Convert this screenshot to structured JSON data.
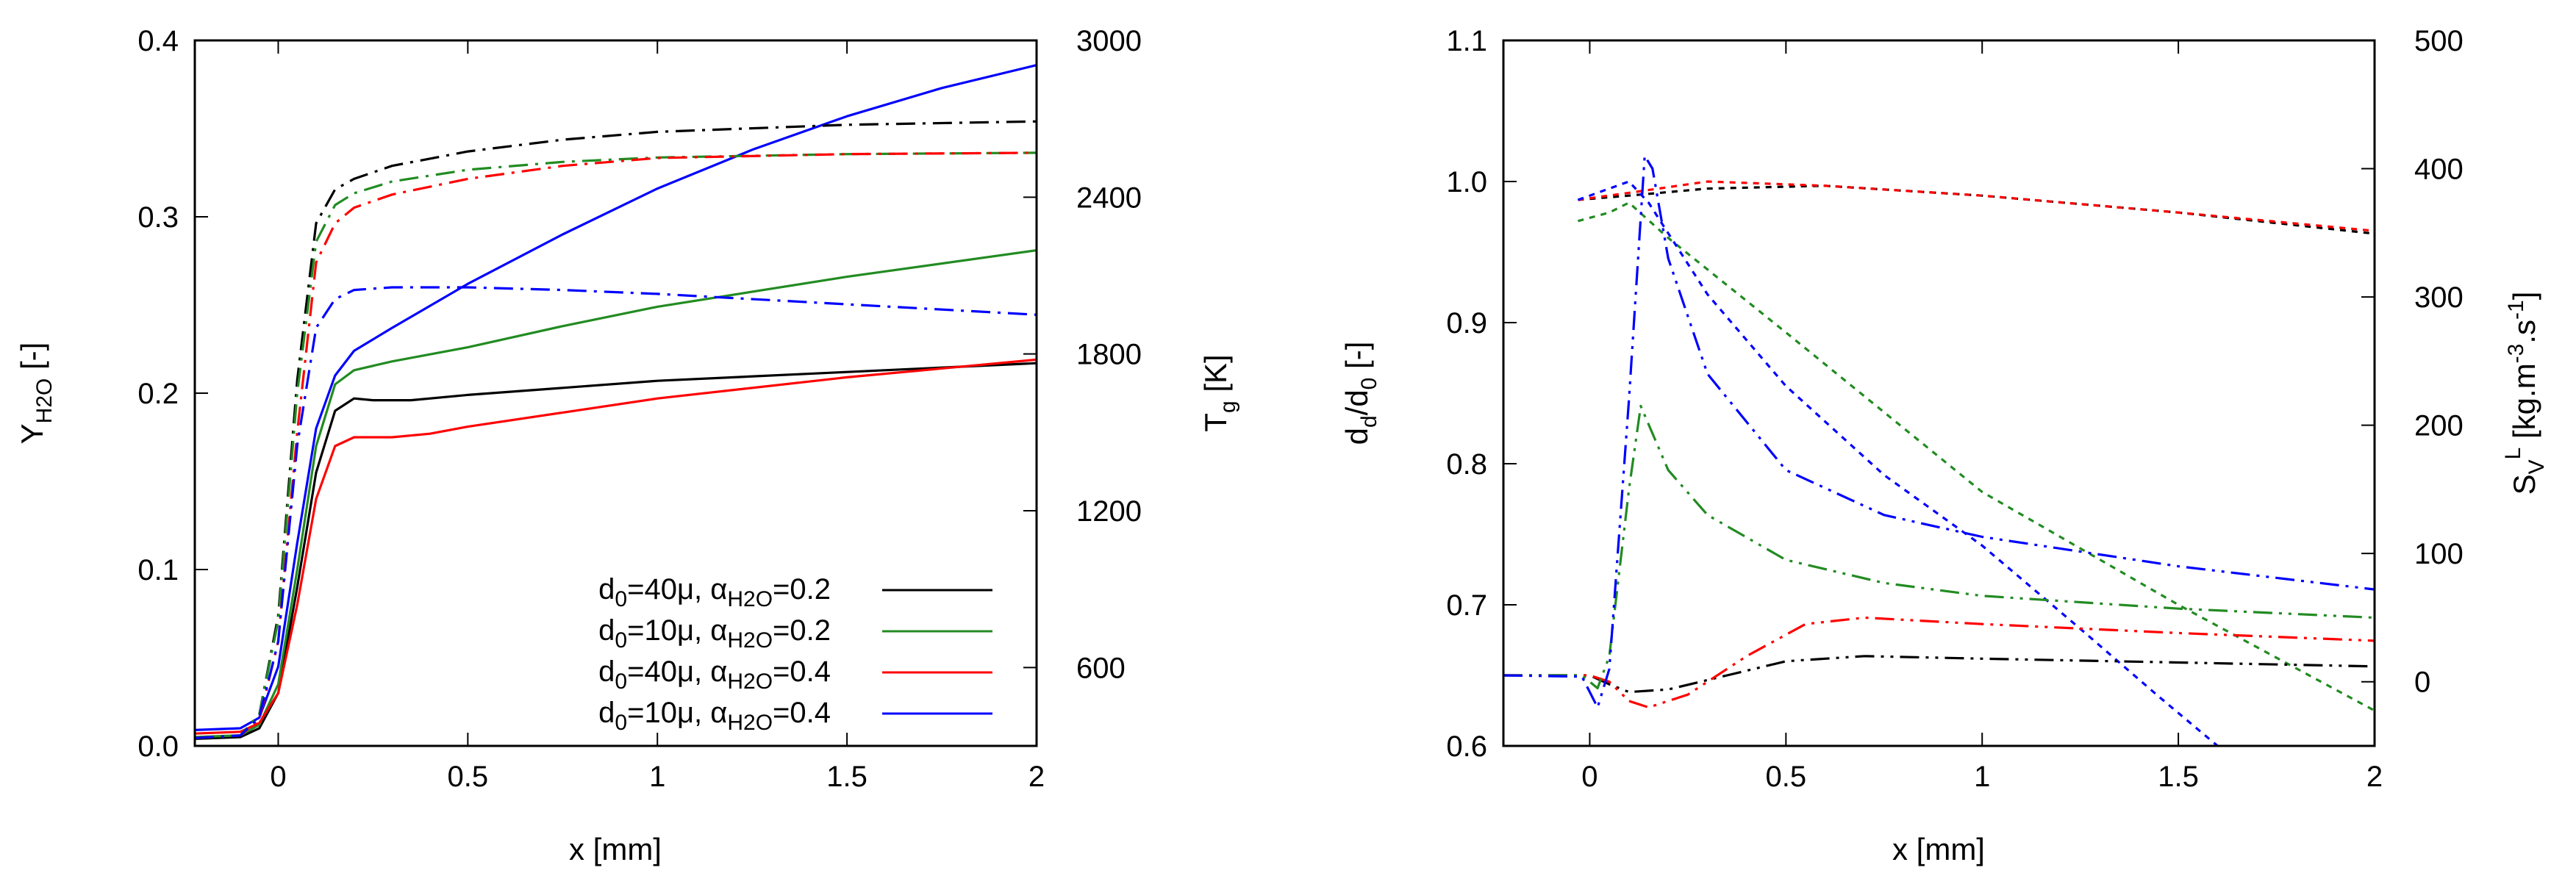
{
  "chart_data": [
    {
      "type": "line",
      "xlabel": "x [mm]",
      "ylabel_left": {
        "main": "Y",
        "sub": "H2O",
        "suffix": " [-]"
      },
      "ylabel_right": {
        "main": "T",
        "sub": "g",
        "suffix": " [K]"
      },
      "xlim": [
        -0.22,
        2.0
      ],
      "ylim_left": [
        0.0,
        0.4
      ],
      "ylim_right": [
        300,
        3000
      ],
      "xticks": [
        {
          "v": 0,
          "label": "0"
        },
        {
          "v": 0.5,
          "label": "0.5"
        },
        {
          "v": 1,
          "label": "1"
        },
        {
          "v": 1.5,
          "label": "1.5"
        },
        {
          "v": 2,
          "label": "2"
        }
      ],
      "yticks_left": [
        {
          "v": 0.0,
          "label": "0.0"
        },
        {
          "v": 0.1,
          "label": "0.1"
        },
        {
          "v": 0.2,
          "label": "0.2"
        },
        {
          "v": 0.3,
          "label": "0.3"
        },
        {
          "v": 0.4,
          "label": "0.4"
        }
      ],
      "yticks_right": [
        {
          "v": 600,
          "label": "600"
        },
        {
          "v": 1200,
          "label": "1200"
        },
        {
          "v": 1800,
          "label": "1800"
        },
        {
          "v": 2400,
          "label": "2400"
        },
        {
          "v": 3000,
          "label": "3000"
        }
      ],
      "legend": [
        {
          "d_label": "d",
          "d_sub": "0",
          "d_val": "=40μ, ",
          "a_label": "α",
          "a_sub": "H2O",
          "a_val": "=0.2",
          "color": "#000000"
        },
        {
          "d_label": "d",
          "d_sub": "0",
          "d_val": "=10μ, ",
          "a_label": "α",
          "a_sub": "H2O",
          "a_val": "=0.2",
          "color": "#228b22"
        },
        {
          "d_label": "d",
          "d_sub": "0",
          "d_val": "=40μ, ",
          "a_label": "α",
          "a_sub": "H2O",
          "a_val": "=0.4",
          "color": "#ff0000"
        },
        {
          "d_label": "d",
          "d_sub": "0",
          "d_val": "=10μ, ",
          "a_label": "α",
          "a_sub": "H2O",
          "a_val": "=0.4",
          "color": "#0000ff"
        }
      ],
      "series": [
        {
          "name": "Y_H2O d0=40μ α=0.2",
          "axis": "left",
          "style": "solid",
          "color": "#000000",
          "x": [
            -0.22,
            -0.1,
            -0.05,
            0.0,
            0.05,
            0.1,
            0.15,
            0.2,
            0.25,
            0.35,
            0.5,
            0.75,
            1.0,
            1.5,
            2.0
          ],
          "y": [
            0.004,
            0.005,
            0.01,
            0.03,
            0.09,
            0.155,
            0.19,
            0.197,
            0.196,
            0.196,
            0.199,
            0.203,
            0.207,
            0.212,
            0.217
          ]
        },
        {
          "name": "Y_H2O d0=10μ α=0.2",
          "axis": "left",
          "style": "solid",
          "color": "#228b22",
          "x": [
            -0.22,
            -0.1,
            -0.05,
            0.0,
            0.05,
            0.1,
            0.15,
            0.2,
            0.3,
            0.5,
            0.75,
            1.0,
            1.5,
            2.0
          ],
          "y": [
            0.005,
            0.006,
            0.012,
            0.035,
            0.1,
            0.17,
            0.205,
            0.213,
            0.218,
            0.226,
            0.238,
            0.249,
            0.266,
            0.281
          ]
        },
        {
          "name": "Y_H2O d0=40μ α=0.4",
          "axis": "left",
          "style": "solid",
          "color": "#ff0000",
          "x": [
            -0.22,
            -0.1,
            -0.05,
            0.0,
            0.05,
            0.1,
            0.15,
            0.2,
            0.3,
            0.4,
            0.5,
            0.75,
            1.0,
            1.5,
            2.0
          ],
          "y": [
            0.007,
            0.008,
            0.013,
            0.03,
            0.08,
            0.14,
            0.17,
            0.175,
            0.175,
            0.177,
            0.181,
            0.189,
            0.197,
            0.209,
            0.219
          ]
        },
        {
          "name": "Y_H2O d0=10μ α=0.4",
          "axis": "left",
          "style": "solid",
          "color": "#0000ff",
          "x": [
            -0.22,
            -0.1,
            -0.05,
            0.0,
            0.05,
            0.1,
            0.15,
            0.2,
            0.3,
            0.5,
            0.75,
            1.0,
            1.25,
            1.5,
            1.75,
            2.0
          ],
          "y": [
            0.009,
            0.01,
            0.016,
            0.045,
            0.115,
            0.18,
            0.21,
            0.224,
            0.237,
            0.262,
            0.29,
            0.316,
            0.338,
            0.357,
            0.373,
            0.386
          ]
        },
        {
          "name": "T_g d0=40μ α=0.2",
          "axis": "right",
          "style": "dashdot",
          "color": "#000000",
          "x": [
            -0.22,
            -0.1,
            -0.05,
            0.0,
            0.05,
            0.1,
            0.15,
            0.2,
            0.3,
            0.5,
            0.75,
            1.0,
            1.5,
            2.0
          ],
          "y": [
            330,
            340,
            420,
            800,
            1700,
            2300,
            2430,
            2470,
            2520,
            2575,
            2620,
            2650,
            2677,
            2690
          ]
        },
        {
          "name": "T_g d0=10μ α=0.2",
          "axis": "right",
          "style": "dashdot",
          "color": "#228b22",
          "x": [
            -0.22,
            -0.1,
            -0.05,
            0.0,
            0.05,
            0.1,
            0.15,
            0.2,
            0.3,
            0.5,
            0.75,
            1.0,
            1.5,
            2.0
          ],
          "y": [
            330,
            340,
            420,
            780,
            1650,
            2230,
            2370,
            2415,
            2460,
            2505,
            2535,
            2552,
            2565,
            2570
          ]
        },
        {
          "name": "T_g d0=40μ α=0.4",
          "axis": "right",
          "style": "dashdot",
          "color": "#ff0000",
          "x": [
            -0.22,
            -0.1,
            -0.05,
            0.0,
            0.05,
            0.1,
            0.15,
            0.2,
            0.3,
            0.5,
            0.75,
            1.0,
            1.5,
            2.0
          ],
          "y": [
            330,
            340,
            400,
            700,
            1500,
            2150,
            2300,
            2360,
            2410,
            2470,
            2520,
            2550,
            2565,
            2570
          ]
        },
        {
          "name": "T_g d0=10μ α=0.4",
          "axis": "right",
          "style": "dashdot",
          "color": "#0000ff",
          "x": [
            -0.22,
            -0.1,
            -0.05,
            0.0,
            0.05,
            0.1,
            0.15,
            0.2,
            0.3,
            0.5,
            0.75,
            1.0,
            1.5,
            2.0
          ],
          "y": [
            330,
            340,
            410,
            700,
            1450,
            1900,
            2010,
            2045,
            2055,
            2055,
            2045,
            2030,
            1990,
            1950
          ]
        }
      ]
    },
    {
      "type": "line",
      "xlabel": "x [mm]",
      "ylabel_left": {
        "main": "d",
        "sub": "d",
        "suffix": "/d",
        "sub2": "0",
        "suffix2": " [-]"
      },
      "ylabel_right": {
        "main": "S",
        "sub": "V",
        "sup": "L",
        "suffix": " [kg.m",
        "sup2": "-3",
        "suffix2": ".s",
        "sup3": "-1",
        "suffix3": "]"
      },
      "xlim": [
        -0.22,
        2.0
      ],
      "ylim_left": [
        0.6,
        1.1
      ],
      "ylim_right": [
        -50,
        500
      ],
      "xticks": [
        {
          "v": 0,
          "label": "0"
        },
        {
          "v": 0.5,
          "label": "0.5"
        },
        {
          "v": 1,
          "label": "1"
        },
        {
          "v": 1.5,
          "label": "1.5"
        },
        {
          "v": 2,
          "label": "2"
        }
      ],
      "yticks_left": [
        {
          "v": 0.6,
          "label": "0.6"
        },
        {
          "v": 0.7,
          "label": "0.7"
        },
        {
          "v": 0.8,
          "label": "0.8"
        },
        {
          "v": 0.9,
          "label": "0.9"
        },
        {
          "v": 1.0,
          "label": "1.0"
        },
        {
          "v": 1.1,
          "label": "1.1"
        }
      ],
      "yticks_right": [
        {
          "v": 0,
          "label": "0"
        },
        {
          "v": 100,
          "label": "100"
        },
        {
          "v": 200,
          "label": "200"
        },
        {
          "v": 300,
          "label": "300"
        },
        {
          "v": 400,
          "label": "400"
        },
        {
          "v": 500,
          "label": "500"
        }
      ],
      "series": [
        {
          "name": "d_d/d_0 d0=40μ α=0.2",
          "axis": "left",
          "style": "dotted",
          "color": "#000000",
          "x": [
            -0.03,
            0.1,
            0.3,
            0.6,
            1.0,
            1.5,
            2.0
          ],
          "y": [
            0.987,
            0.99,
            0.995,
            0.997,
            0.99,
            0.978,
            0.963
          ]
        },
        {
          "name": "d_d/d_0 d0=40μ α=0.4",
          "axis": "left",
          "style": "dotted",
          "color": "#ff0000",
          "x": [
            -0.03,
            0.1,
            0.3,
            0.6,
            1.0,
            1.5,
            2.0
          ],
          "y": [
            0.987,
            0.992,
            1.0,
            0.997,
            0.99,
            0.978,
            0.965
          ]
        },
        {
          "name": "d_d/d_0 d0=10μ α=0.2",
          "axis": "left",
          "style": "dotted",
          "color": "#228b22",
          "x": [
            -0.03,
            0.05,
            0.1,
            0.2,
            0.5,
            1.0,
            1.5,
            2.0
          ],
          "y": [
            0.972,
            0.978,
            0.985,
            0.96,
            0.893,
            0.78,
            0.7,
            0.625
          ]
        },
        {
          "name": "d_d/d_0 d0=10μ α=0.4",
          "axis": "left",
          "style": "dotted",
          "color": "#0000ff",
          "x": [
            -0.03,
            0.05,
            0.1,
            0.15,
            0.3,
            0.5,
            0.75,
            1.0,
            1.25,
            1.45,
            1.6
          ],
          "y": [
            0.987,
            0.995,
            1.0,
            0.985,
            0.92,
            0.855,
            0.792,
            0.742,
            0.683,
            0.635,
            0.6
          ]
        },
        {
          "name": "S_V^L d0=40μ α=0.2",
          "axis": "right",
          "style": "dashdotdot",
          "color": "#000000",
          "x": [
            -0.22,
            0.0,
            0.05,
            0.1,
            0.2,
            0.35,
            0.5,
            0.7,
            1.0,
            1.5,
            2.0
          ],
          "y": [
            5,
            5,
            -2,
            -8,
            -6,
            5,
            16,
            20,
            18,
            15,
            12
          ]
        },
        {
          "name": "S_V^L d0=40μ α=0.4",
          "axis": "right",
          "style": "dashdotdot",
          "color": "#ff0000",
          "x": [
            -0.22,
            0.0,
            0.05,
            0.1,
            0.15,
            0.25,
            0.4,
            0.55,
            0.7,
            1.0,
            1.5,
            2.0
          ],
          "y": [
            5,
            5,
            0,
            -15,
            -20,
            -10,
            20,
            45,
            50,
            45,
            38,
            32
          ]
        },
        {
          "name": "S_V^L d0=10μ α=0.2",
          "axis": "right",
          "style": "dashdotdot",
          "color": "#228b22",
          "x": [
            -0.22,
            -0.02,
            0.02,
            0.05,
            0.1,
            0.13,
            0.2,
            0.3,
            0.5,
            0.75,
            1.0,
            1.5,
            2.0
          ],
          "y": [
            5,
            5,
            -5,
            20,
            150,
            215,
            165,
            130,
            95,
            77,
            67,
            57,
            50
          ]
        },
        {
          "name": "S_V^L d0=10μ α=0.4",
          "axis": "right",
          "style": "dashdotdot",
          "color": "#0000ff",
          "x": [
            -0.22,
            -0.02,
            0.02,
            0.05,
            0.1,
            0.14,
            0.16,
            0.2,
            0.3,
            0.5,
            0.75,
            1.0,
            1.5,
            2.0
          ],
          "y": [
            5,
            4,
            -20,
            10,
            220,
            410,
            400,
            330,
            240,
            165,
            130,
            113,
            90,
            72
          ]
        }
      ]
    }
  ]
}
